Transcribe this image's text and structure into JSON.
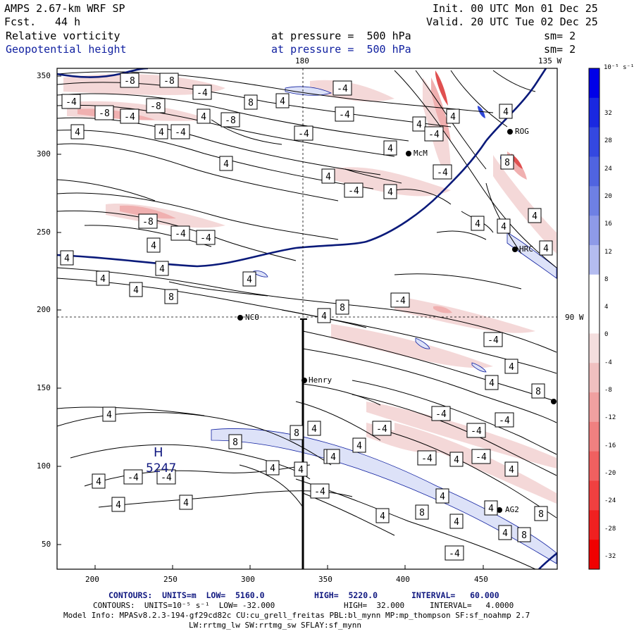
{
  "header": {
    "model": "AMPS 2.67-km WRF SP",
    "fcst_label": "Fcst.",
    "fcst_value": "44 h",
    "init": "Init. 00 UTC Mon 01 Dec 25",
    "valid": "Valid. 20 UTC Tue 02 Dec 25",
    "field1_name": "Relative vorticity",
    "field1_level": "at pressure =  500 hPa",
    "field1_sm": "sm= 2",
    "field2_name": "Geopotential height",
    "field2_level": "at pressure =  500 hPa",
    "field2_sm": "sm= 2"
  },
  "map": {
    "lon_labels": {
      "top_180": "180",
      "top_135w": "135 W",
      "right_90w": "90 W"
    },
    "x_ticks": [
      "200",
      "250",
      "300",
      "350",
      "400",
      "450"
    ],
    "y_ticks": [
      "350",
      "300",
      "250",
      "200",
      "150",
      "100",
      "50"
    ],
    "stations": [
      "McM",
      "ROG",
      "NCO",
      "Henry",
      "HRC",
      "AG2"
    ],
    "high_label": "H",
    "high_value": "5247",
    "contour_labels": [
      "-8",
      "-8",
      "-4",
      "-4",
      "-8",
      "-8",
      "-4",
      "-8",
      "4",
      "4",
      "8",
      "4",
      "4",
      "-4",
      "4",
      "-4",
      "4",
      "-4",
      "4",
      "4",
      "4",
      "-4",
      "-4",
      "4",
      "4",
      "-8",
      "-4",
      "-4",
      "4",
      "4",
      "4",
      "4",
      "4",
      "8",
      "4",
      "-4",
      "4",
      "-4",
      "-4",
      "8",
      "8",
      "4",
      "4",
      "8",
      "4",
      "-4",
      "4",
      "-4",
      "-4",
      "-4",
      "8",
      "4",
      "-4",
      "4",
      "4",
      "4",
      "4",
      "4",
      "8",
      "4",
      "4",
      "4",
      "4",
      "-4",
      "-4",
      "-4",
      "4",
      "-4",
      "4",
      "4",
      "4",
      "-4",
      "4",
      "8",
      "4",
      "4",
      "4",
      "4",
      "8",
      "-4",
      "8"
    ],
    "height_contour_color": "#0a1a7a",
    "pos_vort_color": "#2030c8",
    "neg_vort_color": "#e03030"
  },
  "colorbar": {
    "title": "10⁻⁵ s⁻¹",
    "labels": [
      "32",
      "28",
      "24",
      "20",
      "16",
      "12",
      "8",
      "4",
      "0",
      "-4",
      "-8",
      "-12",
      "-16",
      "-20",
      "-24",
      "-28",
      "-32"
    ],
    "colors": [
      "#0000e8",
      "#1a28e0",
      "#3448e0",
      "#5064e0",
      "#6e80e4",
      "#8e9ae8",
      "#b4bcf0",
      "#ffffff",
      "#ffffff",
      "#f4dede",
      "#f0c0c0",
      "#f0a0a0",
      "#f08080",
      "#f06060",
      "#f04040",
      "#f02020",
      "#f00000"
    ]
  },
  "footer": {
    "line1_a": "CONTOURS:  UNITS=m  LOW=  5160.0",
    "line1_b": "HIGH=  5220.0",
    "line1_c": "INTERVAL=   60.000",
    "line2_a": "CONTOURS:  UNITS=10⁻⁵ s⁻¹  LOW= -32.000",
    "line2_b": "HIGH=  32.000",
    "line2_c": "INTERVAL=   4.0000",
    "line3": "Model Info: MPASv8.2.3-194-gf29cd82c CU:cu_grell_freitas PBL:bl_mynn MP:mp_thompson SF:sf_noahmp 2.7",
    "line4": "LW:rrtmg_lw SW:rrtmg_sw SFLAY:sf_mynn"
  }
}
